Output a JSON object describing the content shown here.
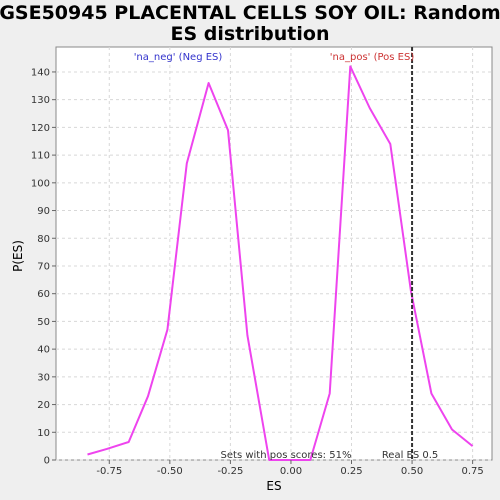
{
  "chart_data": {
    "type": "line",
    "title_lines": [
      "GSE50945 PLACENTAL CELLS SOY OIL: Random",
      "ES distribution"
    ],
    "xlabel": "ES",
    "ylabel": "P(ES)",
    "xlim": [
      -0.97,
      0.83
    ],
    "ylim": [
      0,
      149
    ],
    "x_ticks": [
      -0.75,
      -0.5,
      -0.25,
      0.0,
      0.25,
      0.5,
      0.75
    ],
    "x_tick_labels": [
      "-0.75",
      "-0.50",
      "-0.25",
      "0.00",
      "0.25",
      "0.50",
      "0.75"
    ],
    "y_ticks": [
      0,
      10,
      20,
      30,
      40,
      50,
      60,
      70,
      80,
      90,
      100,
      110,
      120,
      130,
      140
    ],
    "grid": true,
    "series": [
      {
        "color": "#ee44ee",
        "points": [
          [
            -0.84,
            2
          ],
          [
            -0.76,
            4
          ],
          [
            -0.67,
            6.5
          ],
          [
            -0.59,
            23
          ],
          [
            -0.51,
            47
          ],
          [
            -0.43,
            107
          ],
          [
            -0.34,
            136
          ],
          [
            -0.26,
            119
          ],
          [
            -0.18,
            45
          ],
          [
            -0.09,
            0
          ],
          [
            -0.01,
            0
          ],
          [
            0.08,
            0
          ],
          [
            0.16,
            24
          ],
          [
            0.245,
            142
          ],
          [
            0.325,
            127
          ],
          [
            0.41,
            114
          ],
          [
            0.495,
            61
          ],
          [
            0.58,
            24
          ],
          [
            0.665,
            11
          ],
          [
            0.75,
            5
          ]
        ]
      }
    ],
    "reference_line": {
      "x": 0.5,
      "label": "Real ES 0.5",
      "color": "#333333"
    },
    "annotations": {
      "neg_label": "'na_neg' (Neg ES)",
      "neg_color": "#3333cc",
      "pos_label": "'na_pos' (Pos ES)",
      "pos_color": "#cc3333",
      "footer": "Sets with pos scores: 51%"
    }
  }
}
